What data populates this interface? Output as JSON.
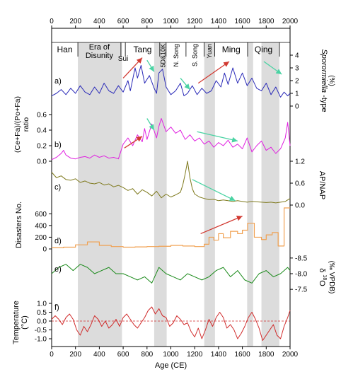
{
  "chart_data": {
    "type": "line",
    "x_axis": {
      "label": "Age (CE)",
      "range": [
        0,
        2000
      ],
      "ticks": [
        0,
        200,
        400,
        600,
        800,
        1000,
        1200,
        1400,
        1600,
        1800,
        2000
      ]
    },
    "gray_bands": [
      [
        220,
        590
      ],
      [
        860,
        965
      ],
      [
        1280,
        1370
      ],
      [
        1640,
        1690
      ],
      [
        1760,
        1910
      ]
    ],
    "dynasties": [
      {
        "name": "Han",
        "range": [
          0,
          220
        ]
      },
      {
        "name": "Era of Disunity",
        "range": [
          220,
          580
        ]
      },
      {
        "name": "Sui",
        "range": [
          581,
          618
        ]
      },
      {
        "name": "Tang",
        "range": [
          618,
          907
        ]
      },
      {
        "name": "5D&10K",
        "range": [
          907,
          960
        ]
      },
      {
        "name": "N. Song",
        "range": [
          960,
          1127
        ]
      },
      {
        "name": "S. Song",
        "range": [
          1127,
          1279
        ]
      },
      {
        "name": "Yuan",
        "range": [
          1279,
          1368
        ]
      },
      {
        "name": "Ming",
        "range": [
          1368,
          1644
        ]
      },
      {
        "name": "Qing",
        "range": [
          1644,
          1911
        ]
      }
    ],
    "panels": [
      {
        "id": "a",
        "label": "a)",
        "ylabel": "Sporormiella -type (%)",
        "ylabel_main": "Sporormiella",
        "ylabel_suffix": "-type",
        "ylabel_unit": "(%)",
        "y_axis_side": "right",
        "ylim": [
          0,
          4
        ],
        "ticks": [
          0,
          1,
          2,
          3,
          4
        ],
        "color": "#2a2ab8",
        "x": [
          0,
          40,
          80,
          120,
          160,
          200,
          240,
          280,
          320,
          360,
          400,
          440,
          480,
          520,
          560,
          600,
          640,
          660,
          700,
          720,
          750,
          780,
          820,
          860,
          880,
          900,
          930,
          960,
          1000,
          1040,
          1080,
          1110,
          1140,
          1180,
          1220,
          1260,
          1300,
          1340,
          1380,
          1420,
          1450,
          1480,
          1520,
          1560,
          1600,
          1640,
          1680,
          1720,
          1760,
          1800,
          1840,
          1880,
          1920,
          1950,
          1980,
          2000
        ],
        "y": [
          0.8,
          1.0,
          1.3,
          0.9,
          1.4,
          1.0,
          1.6,
          1.1,
          0.9,
          1.5,
          1.0,
          1.8,
          1.2,
          1.0,
          1.6,
          1.1,
          2.0,
          1.2,
          3.0,
          2.2,
          3.2,
          1.8,
          2.4,
          1.4,
          1.0,
          2.6,
          2.9,
          1.5,
          0.9,
          1.2,
          1.8,
          0.8,
          1.0,
          1.6,
          0.9,
          1.4,
          1.0,
          1.2,
          2.0,
          1.5,
          2.6,
          1.7,
          3.0,
          1.8,
          2.6,
          1.6,
          2.2,
          1.4,
          1.2,
          1.8,
          0.9,
          1.5,
          0.7,
          1.1,
          0.8,
          1.0
        ]
      },
      {
        "id": "b",
        "label": "b)",
        "ylabel": "(Ce+Fa)/(Po+Fa) ratio",
        "y_axis_side": "left",
        "ylim": [
          0,
          0.6
        ],
        "ticks": [
          0.0,
          0.2,
          0.4,
          0.6
        ],
        "color": "#e020e0",
        "x": [
          0,
          40,
          80,
          100,
          120,
          160,
          200,
          240,
          280,
          320,
          360,
          400,
          440,
          480,
          520,
          560,
          600,
          640,
          680,
          720,
          760,
          780,
          800,
          840,
          880,
          900,
          920,
          960,
          1000,
          1040,
          1080,
          1120,
          1160,
          1200,
          1240,
          1280,
          1320,
          1360,
          1400,
          1440,
          1480,
          1520,
          1560,
          1600,
          1640,
          1680,
          1720,
          1760,
          1800,
          1840,
          1880,
          1920,
          1960,
          1980,
          2000
        ],
        "y": [
          0.02,
          0.05,
          0.1,
          0.14,
          0.08,
          0.04,
          0.03,
          0.05,
          0.06,
          0.04,
          0.08,
          0.05,
          0.07,
          0.04,
          0.05,
          0.03,
          0.22,
          0.3,
          0.2,
          0.34,
          0.25,
          0.42,
          0.28,
          0.48,
          0.3,
          0.45,
          0.55,
          0.38,
          0.44,
          0.36,
          0.4,
          0.28,
          0.34,
          0.26,
          0.3,
          0.22,
          0.26,
          0.18,
          0.24,
          0.2,
          0.27,
          0.18,
          0.22,
          0.16,
          0.3,
          0.12,
          0.2,
          0.26,
          0.14,
          0.18,
          0.1,
          0.16,
          0.3,
          0.5,
          0.2
        ]
      },
      {
        "id": "c",
        "label": "c)",
        "ylabel": "AP/NAP",
        "y_axis_side": "right",
        "ylim": [
          0,
          1.2
        ],
        "ticks": [
          0.0,
          0.6,
          1.2
        ],
        "color": "#7f7a1e",
        "x": [
          0,
          40,
          80,
          120,
          160,
          200,
          240,
          280,
          320,
          360,
          400,
          440,
          480,
          520,
          560,
          600,
          640,
          680,
          720,
          760,
          800,
          840,
          880,
          920,
          960,
          1000,
          1040,
          1080,
          1100,
          1120,
          1140,
          1160,
          1180,
          1200,
          1240,
          1280,
          1320,
          1360,
          1400,
          1440,
          1480,
          1520,
          1560,
          1600,
          1640,
          1680,
          1720,
          1760,
          1800,
          1840,
          1880,
          1920,
          1960,
          2000
        ],
        "y": [
          0.9,
          0.75,
          0.8,
          0.7,
          0.68,
          0.72,
          0.62,
          0.66,
          0.6,
          0.58,
          0.62,
          0.55,
          0.58,
          0.5,
          0.54,
          0.48,
          0.4,
          0.45,
          0.3,
          0.42,
          0.35,
          0.25,
          0.38,
          0.2,
          0.3,
          0.22,
          0.28,
          0.35,
          0.55,
          0.85,
          1.2,
          0.75,
          0.45,
          0.3,
          0.22,
          0.18,
          0.15,
          0.16,
          0.12,
          0.14,
          0.12,
          0.1,
          0.12,
          0.1,
          0.08,
          0.1,
          0.09,
          0.08,
          0.07,
          0.08,
          0.06,
          0.08,
          0.1,
          0.18
        ]
      },
      {
        "id": "d",
        "label": "d)",
        "ylabel": "Disasters No.",
        "y_axis_side": "left",
        "ylim": [
          0,
          700
        ],
        "ticks": [
          0,
          200,
          400,
          600
        ],
        "color": "#f0a050",
        "step": true,
        "x": [
          0,
          100,
          200,
          300,
          400,
          500,
          600,
          700,
          800,
          900,
          1000,
          1100,
          1200,
          1280,
          1320,
          1360,
          1400,
          1440,
          1500,
          1560,
          1600,
          1644,
          1700,
          1760,
          1800,
          1850,
          1900,
          1950,
          2000
        ],
        "y": [
          20,
          30,
          70,
          120,
          60,
          40,
          30,
          35,
          40,
          45,
          60,
          50,
          40,
          80,
          200,
          150,
          260,
          190,
          300,
          260,
          320,
          440,
          200,
          160,
          240,
          280,
          50,
          700,
          700
        ]
      },
      {
        "id": "e",
        "label": "e)",
        "ylabel": "δ18O (‰ VPDB)",
        "ylabel_delta": "δ",
        "ylabel_sup": "18",
        "ylabel_o": "O",
        "ylabel_unit": "(‰ VPDB)",
        "y_axis_side": "right",
        "ylim": [
          -7.3,
          -8.7
        ],
        "ticks": [
          -8.5,
          -8.0,
          -7.5
        ],
        "color": "#1a8a1a",
        "x": [
          0,
          60,
          120,
          180,
          240,
          300,
          360,
          420,
          480,
          540,
          600,
          660,
          720,
          780,
          840,
          900,
          960,
          1020,
          1080,
          1140,
          1200,
          1260,
          1320,
          1380,
          1440,
          1500,
          1560,
          1620,
          1680,
          1740,
          1800,
          1860,
          1920,
          1980,
          2000
        ],
        "y": [
          -8.0,
          -8.2,
          -8.3,
          -8.1,
          -8.3,
          -8.2,
          -8.0,
          -8.1,
          -8.2,
          -8.0,
          -8.0,
          -7.9,
          -7.8,
          -7.9,
          -7.7,
          -8.2,
          -8.0,
          -7.9,
          -7.8,
          -8.0,
          -7.9,
          -7.8,
          -7.9,
          -8.1,
          -8.2,
          -7.9,
          -8.1,
          -7.8,
          -7.7,
          -8.0,
          -8.1,
          -7.9,
          -8.0,
          -8.2,
          -8.1
        ]
      },
      {
        "id": "f",
        "label": "f)",
        "ylabel": "Temperature (°C)",
        "y_axis_side": "left",
        "ylim": [
          -1.2,
          1.2
        ],
        "ticks": [
          -1.0,
          -0.5,
          0.0,
          0.5,
          1.0
        ],
        "color": "#d02a2a",
        "reference_line": 0,
        "x": [
          0,
          30,
          60,
          90,
          120,
          150,
          180,
          210,
          240,
          270,
          300,
          330,
          360,
          390,
          420,
          450,
          480,
          510,
          540,
          570,
          600,
          630,
          660,
          690,
          720,
          750,
          780,
          810,
          840,
          870,
          900,
          930,
          960,
          990,
          1020,
          1050,
          1080,
          1110,
          1140,
          1170,
          1200,
          1230,
          1260,
          1290,
          1320,
          1350,
          1380,
          1410,
          1440,
          1470,
          1500,
          1530,
          1560,
          1590,
          1620,
          1650,
          1680,
          1710,
          1740,
          1770,
          1800,
          1830,
          1860,
          1890,
          1920,
          1950,
          1980,
          2000
        ],
        "y": [
          0.1,
          0.3,
          0.1,
          -0.2,
          0.2,
          0.4,
          0.1,
          -0.5,
          -0.8,
          -0.3,
          -0.6,
          -0.2,
          0.3,
          0.1,
          -0.3,
          0.0,
          -0.4,
          -0.2,
          0.1,
          -0.3,
          0.2,
          0.4,
          0.1,
          -0.2,
          -0.4,
          -0.1,
          0.2,
          0.6,
          0.8,
          0.4,
          0.7,
          0.3,
          0.2,
          -0.3,
          -0.1,
          0.3,
          0.1,
          -0.2,
          -0.1,
          -0.6,
          -0.9,
          -0.4,
          -1.0,
          -0.5,
          0.1,
          -0.3,
          0.2,
          0.5,
          0.2,
          -0.4,
          -0.2,
          -0.5,
          -1.0,
          -0.7,
          -0.3,
          0.2,
          0.5,
          0.1,
          -0.4,
          -1.1,
          -0.8,
          -0.5,
          -0.2,
          -0.8,
          -1.0,
          -0.3,
          0.2,
          0.6
        ]
      }
    ],
    "arrows": [
      {
        "color": "#d23a32",
        "from": [
          600,
          "a",
          2.2
        ],
        "to": [
          760,
          "a",
          3.8
        ]
      },
      {
        "color": "#4ad3a3",
        "from": [
          800,
          "a",
          3.6
        ],
        "to": [
          860,
          "a",
          2.7
        ]
      },
      {
        "color": "#4ad3a3",
        "from": [
          1080,
          "a",
          2.2
        ],
        "to": [
          1160,
          "a",
          1.3
        ]
      },
      {
        "color": "#d23a32",
        "from": [
          1230,
          "a",
          1.8
        ],
        "to": [
          1490,
          "a",
          3.5
        ]
      },
      {
        "color": "#4ad3a3",
        "from": [
          1780,
          "a",
          3.5
        ],
        "to": [
          1930,
          "a",
          2.5
        ]
      },
      {
        "color": "#d23a32",
        "from": [
          610,
          "b",
          0.17
        ],
        "to": [
          760,
          "b",
          0.32
        ]
      },
      {
        "color": "#4ad3a3",
        "from": [
          800,
          "b",
          0.55
        ],
        "to": [
          860,
          "b",
          0.4
        ]
      },
      {
        "color": "#4ad3a3",
        "from": [
          1220,
          "b",
          0.38
        ],
        "to": [
          1560,
          "b",
          0.26
        ]
      },
      {
        "color": "#4ad3a3",
        "from": [
          1180,
          "c",
          0.7
        ],
        "to": [
          1540,
          "c",
          0.12
        ]
      },
      {
        "color": "#d23a32",
        "from": [
          1250,
          "d",
          260
        ],
        "to": [
          1600,
          "d",
          560
        ]
      }
    ]
  }
}
